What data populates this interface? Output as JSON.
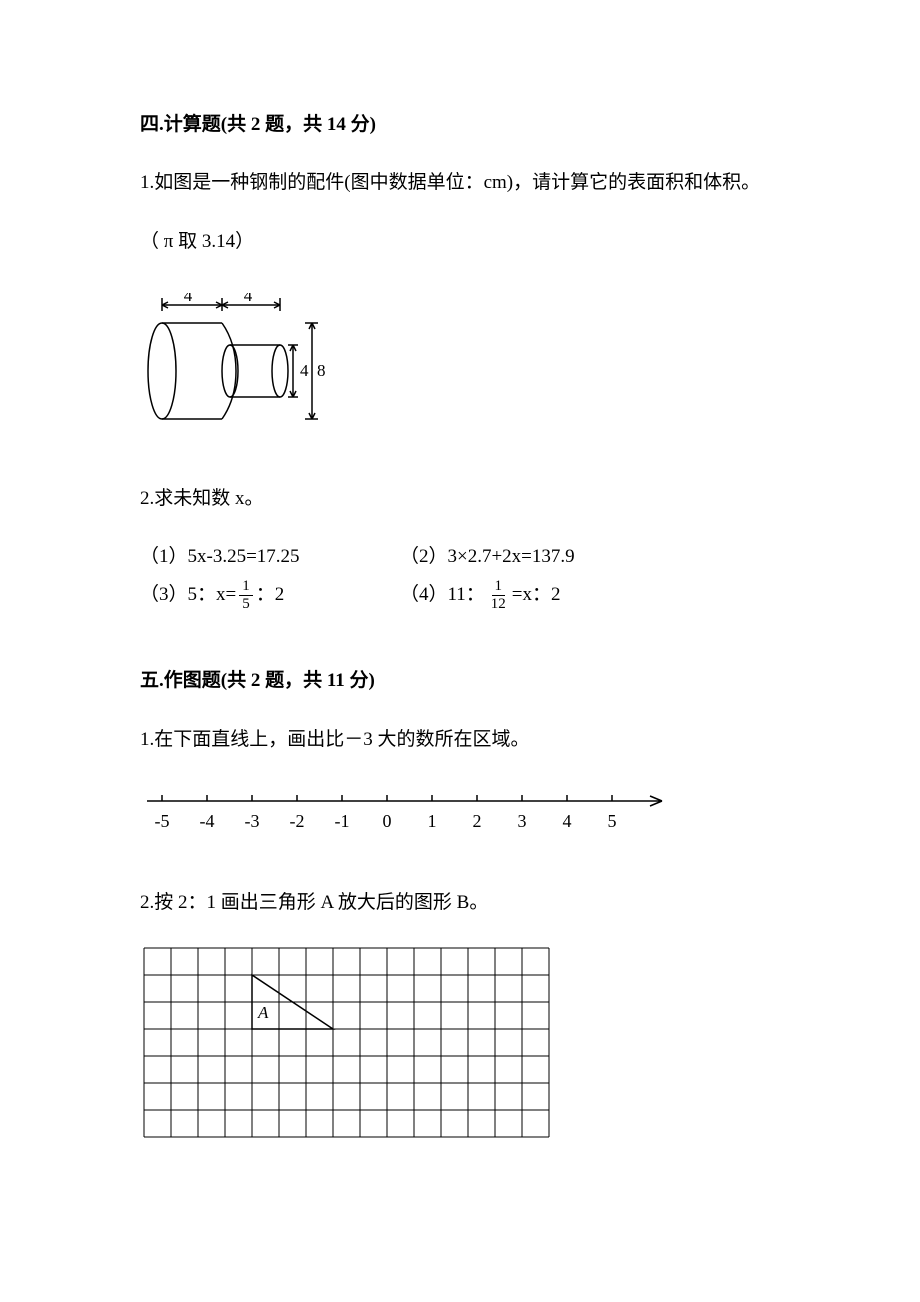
{
  "section4": {
    "header": "四.计算题(共 2 题，共 14 分)",
    "q1": {
      "text": "1.如图是一种钢制的配件(图中数据单位：cm)，请计算它的表面积和体积。",
      "pi_note": "（ π 取 3.14）",
      "diagram": {
        "big_width": 4,
        "small_width": 4,
        "small_height": 4,
        "big_height": 8
      }
    },
    "q2": {
      "text": "2.求未知数 x。",
      "eq1_label": "（1）5x-3.25=17.25",
      "eq2_label": "（2）3×2.7+2x=137.9",
      "eq3_prefix": "（3）5：x= ",
      "eq3_frac_num": "1",
      "eq3_frac_den": "5",
      "eq3_suffix": " ：2",
      "eq4_prefix": "（4）11： ",
      "eq4_frac_num": "1",
      "eq4_frac_den": "12",
      "eq4_suffix": " =x：2"
    }
  },
  "section5": {
    "header": "五.作图题(共 2 题，共 11 分)",
    "q1": {
      "text": "1.在下面直线上，画出比－3 大的数所在区域。",
      "number_line": {
        "labels": [
          "-5",
          "-4",
          "-3",
          "-2",
          "-1",
          "0",
          "1",
          "2",
          "3",
          "4",
          "5"
        ],
        "tick_count": 11
      }
    },
    "q2": {
      "text": "2.按 2：1 画出三角形 A 放大后的图形 B。",
      "grid": {
        "cols": 15,
        "rows": 7,
        "cell_size": 27,
        "triangle_label": "A",
        "triangle_vertices": [
          [
            4,
            1
          ],
          [
            4,
            3
          ],
          [
            7,
            3
          ]
        ]
      }
    }
  }
}
